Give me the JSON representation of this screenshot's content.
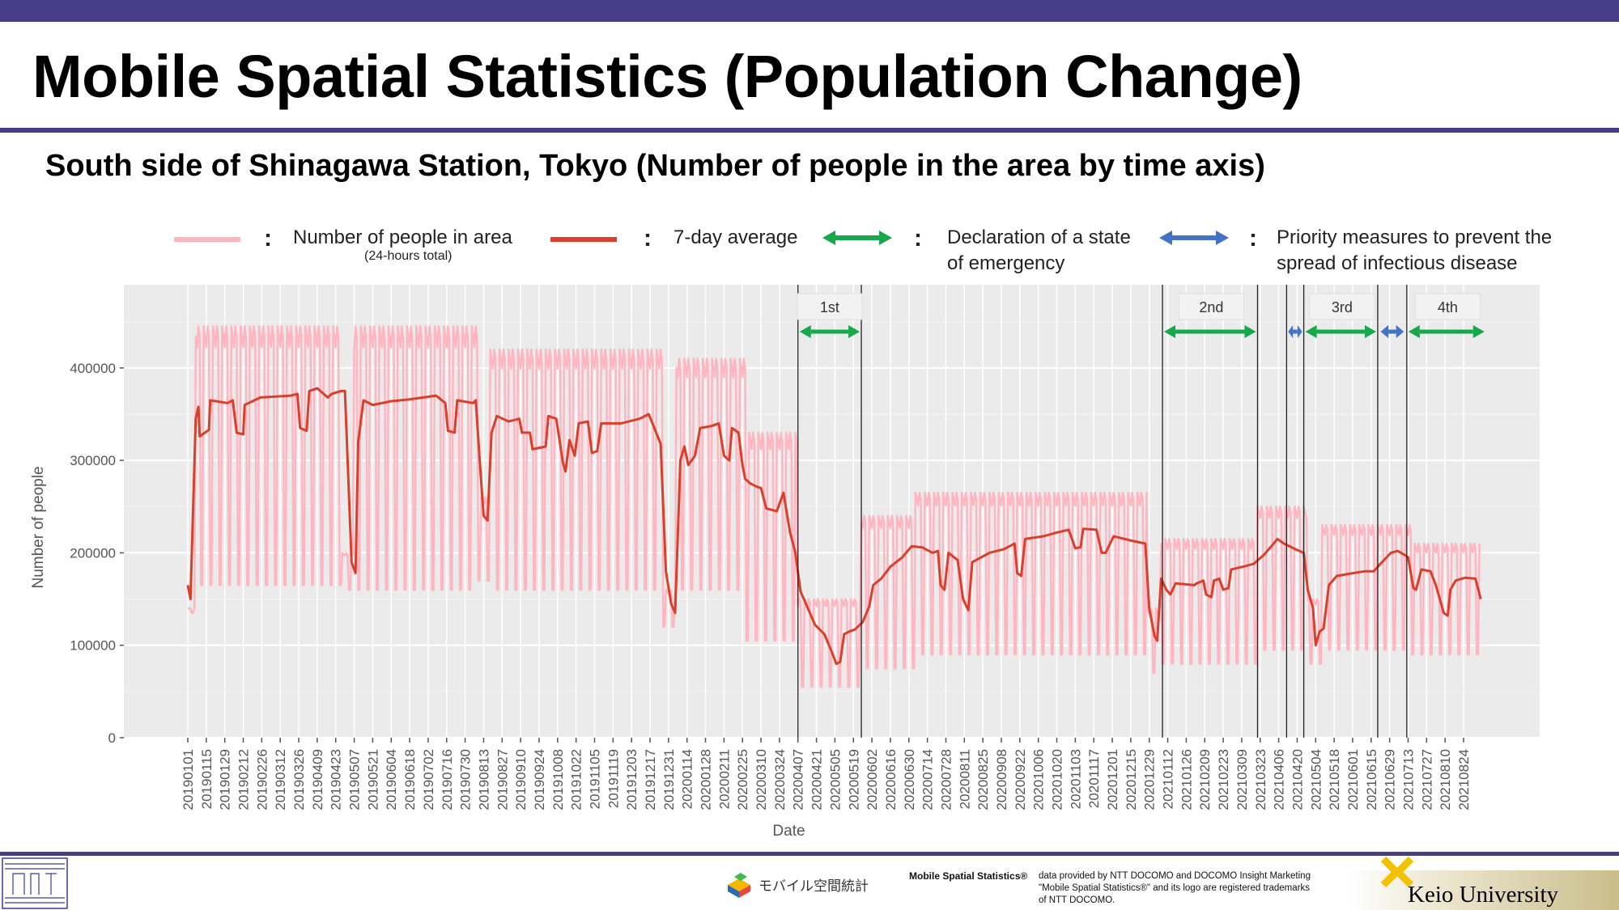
{
  "header": {
    "title": "Mobile Spatial Statistics (Population Change)",
    "subtitle": "South side of Shinagawa Station, Tokyo (Number of people in the area by time axis)"
  },
  "legend": {
    "people": "Number of people in area",
    "people_note": "(24-hours total)",
    "average": "7-day average",
    "emergency_line1": "Declaration of a state",
    "emergency_line2": "of emergency",
    "priority_line1": "Priority measures to prevent the",
    "priority_line2": "spread of infectious disease",
    "colon": ":"
  },
  "colors": {
    "daily": "#ffb6c1",
    "average": "#d9402c",
    "emergency": "#16a84a",
    "priority": "#4472c4",
    "panel": "#ebebeb",
    "brand": "#463d86"
  },
  "footer": {
    "mobile_brand": "モバイル空間統計",
    "credit_bold": "Mobile Spatial Statistics®",
    "credit_line1": "data provided by NTT DOCOMO and DOCOMO Insight Marketing",
    "credit_line2": "\"Mobile Spatial Statistics®\" and its logo are registered trademarks",
    "credit_line3": "of NTT DOCOMO.",
    "university": "Keio University"
  },
  "chart_data": {
    "type": "line",
    "xlabel": "Date",
    "ylabel": "Number of people",
    "ylim": [
      0,
      490000
    ],
    "yticks": [
      0,
      100000,
      200000,
      300000,
      400000
    ],
    "xlim": [
      "2019-01-01",
      "2021-09-10"
    ],
    "xticks": [
      "20190101",
      "20190115",
      "20190129",
      "20190212",
      "20190226",
      "20190312",
      "20190326",
      "20190409",
      "20190423",
      "20190507",
      "20190521",
      "20190604",
      "20190618",
      "20190702",
      "20190716",
      "20190730",
      "20190813",
      "20190827",
      "20190910",
      "20190924",
      "20191008",
      "20191022",
      "20191105",
      "20191119",
      "20191203",
      "20191217",
      "20191231",
      "20200114",
      "20200128",
      "20200211",
      "20200225",
      "20200310",
      "20200324",
      "20200407",
      "20200421",
      "20200505",
      "20200519",
      "20200602",
      "20200616",
      "20200630",
      "20200714",
      "20200728",
      "20200811",
      "20200825",
      "20200908",
      "20200922",
      "20201006",
      "20201020",
      "20201103",
      "20201117",
      "20201201",
      "20201215",
      "20201229",
      "20210112",
      "20210126",
      "20210209",
      "20210223",
      "20210309",
      "20210323",
      "20210406",
      "20210420",
      "20210504",
      "20210518",
      "20210601",
      "20210615",
      "20210629",
      "20210713",
      "20210727",
      "20210810",
      "20210824"
    ],
    "grid": true,
    "legend_position": "top",
    "series": [
      {
        "name": "7-day average",
        "points": [
          [
            "2019-01-01",
            165000
          ],
          [
            "2019-01-03",
            150000
          ],
          [
            "2019-01-07",
            345000
          ],
          [
            "2019-01-09",
            358000
          ],
          [
            "2019-01-10",
            326000
          ],
          [
            "2019-01-17",
            333000
          ],
          [
            "2019-01-18",
            365000
          ],
          [
            "2019-01-31",
            362000
          ],
          [
            "2019-02-04",
            365000
          ],
          [
            "2019-02-07",
            330000
          ],
          [
            "2019-02-12",
            328000
          ],
          [
            "2019-02-13",
            360000
          ],
          [
            "2019-02-25",
            368000
          ],
          [
            "2019-03-20",
            370000
          ],
          [
            "2019-03-25",
            372000
          ],
          [
            "2019-03-27",
            335000
          ],
          [
            "2019-04-01",
            332000
          ],
          [
            "2019-04-03",
            375000
          ],
          [
            "2019-04-09",
            378000
          ],
          [
            "2019-04-17",
            368000
          ],
          [
            "2019-04-20",
            372000
          ],
          [
            "2019-04-27",
            375000
          ],
          [
            "2019-04-30",
            375000
          ],
          [
            "2019-05-05",
            190000
          ],
          [
            "2019-05-08",
            178000
          ],
          [
            "2019-05-10",
            320000
          ],
          [
            "2019-05-14",
            365000
          ],
          [
            "2019-05-21",
            360000
          ],
          [
            "2019-06-04",
            364000
          ],
          [
            "2019-06-18",
            366000
          ],
          [
            "2019-07-08",
            370000
          ],
          [
            "2019-07-15",
            362000
          ],
          [
            "2019-07-17",
            332000
          ],
          [
            "2019-07-22",
            330000
          ],
          [
            "2019-07-24",
            365000
          ],
          [
            "2019-08-05",
            362000
          ],
          [
            "2019-08-07",
            365000
          ],
          [
            "2019-08-10",
            300000
          ],
          [
            "2019-08-13",
            240000
          ],
          [
            "2019-08-16",
            235000
          ],
          [
            "2019-08-19",
            330000
          ],
          [
            "2019-08-23",
            348000
          ],
          [
            "2019-09-01",
            342000
          ],
          [
            "2019-09-09",
            345000
          ],
          [
            "2019-09-11",
            330000
          ],
          [
            "2019-09-17",
            330000
          ],
          [
            "2019-09-19",
            312000
          ],
          [
            "2019-09-29",
            315000
          ],
          [
            "2019-10-01",
            348000
          ],
          [
            "2019-10-07",
            345000
          ],
          [
            "2019-10-12",
            298000
          ],
          [
            "2019-10-14",
            288000
          ],
          [
            "2019-10-17",
            322000
          ],
          [
            "2019-10-21",
            305000
          ],
          [
            "2019-10-24",
            340000
          ],
          [
            "2019-10-31",
            342000
          ],
          [
            "2019-11-03",
            308000
          ],
          [
            "2019-11-07",
            310000
          ],
          [
            "2019-11-10",
            340000
          ],
          [
            "2019-11-25",
            340000
          ],
          [
            "2019-12-09",
            345000
          ],
          [
            "2019-12-16",
            350000
          ],
          [
            "2019-12-25",
            318000
          ],
          [
            "2019-12-29",
            180000
          ],
          [
            "2020-01-02",
            145000
          ],
          [
            "2020-01-05",
            135000
          ],
          [
            "2020-01-09",
            300000
          ],
          [
            "2020-01-12",
            315000
          ],
          [
            "2020-01-15",
            295000
          ],
          [
            "2020-01-20",
            305000
          ],
          [
            "2020-01-24",
            335000
          ],
          [
            "2020-02-01",
            337000
          ],
          [
            "2020-02-07",
            340000
          ],
          [
            "2020-02-11",
            305000
          ],
          [
            "2020-02-15",
            300000
          ],
          [
            "2020-02-17",
            335000
          ],
          [
            "2020-02-22",
            330000
          ],
          [
            "2020-02-25",
            295000
          ],
          [
            "2020-02-27",
            280000
          ],
          [
            "2020-03-02",
            275000
          ],
          [
            "2020-03-06",
            272000
          ],
          [
            "2020-03-10",
            270000
          ],
          [
            "2020-03-14",
            248000
          ],
          [
            "2020-03-22",
            245000
          ],
          [
            "2020-03-27",
            265000
          ],
          [
            "2020-04-01",
            222000
          ],
          [
            "2020-04-05",
            200000
          ],
          [
            "2020-04-09",
            158000
          ],
          [
            "2020-04-13",
            145000
          ],
          [
            "2020-04-20",
            122000
          ],
          [
            "2020-04-27",
            112000
          ],
          [
            "2020-05-02",
            95000
          ],
          [
            "2020-05-06",
            80000
          ],
          [
            "2020-05-09",
            82000
          ],
          [
            "2020-05-12",
            112000
          ],
          [
            "2020-05-16",
            115000
          ],
          [
            "2020-05-20",
            117000
          ],
          [
            "2020-05-26",
            125000
          ],
          [
            "2020-05-31",
            142000
          ],
          [
            "2020-06-03",
            165000
          ],
          [
            "2020-06-09",
            172000
          ],
          [
            "2020-06-16",
            185000
          ],
          [
            "2020-06-25",
            195000
          ],
          [
            "2020-07-02",
            207000
          ],
          [
            "2020-07-10",
            206000
          ],
          [
            "2020-07-18",
            200000
          ],
          [
            "2020-07-22",
            202000
          ],
          [
            "2020-07-24",
            165000
          ],
          [
            "2020-07-27",
            160000
          ],
          [
            "2020-07-30",
            200000
          ],
          [
            "2020-08-06",
            192000
          ],
          [
            "2020-08-10",
            150000
          ],
          [
            "2020-08-14",
            138000
          ],
          [
            "2020-08-17",
            190000
          ],
          [
            "2020-08-30",
            200000
          ],
          [
            "2020-09-10",
            204000
          ],
          [
            "2020-09-18",
            210000
          ],
          [
            "2020-09-20",
            178000
          ],
          [
            "2020-09-23",
            175000
          ],
          [
            "2020-09-26",
            215000
          ],
          [
            "2020-10-10",
            218000
          ],
          [
            "2020-10-20",
            222000
          ],
          [
            "2020-10-29",
            225000
          ],
          [
            "2020-11-03",
            205000
          ],
          [
            "2020-11-07",
            206000
          ],
          [
            "2020-11-09",
            226000
          ],
          [
            "2020-11-19",
            225000
          ],
          [
            "2020-11-23",
            200000
          ],
          [
            "2020-11-26",
            200000
          ],
          [
            "2020-12-02",
            218000
          ],
          [
            "2020-12-16",
            213000
          ],
          [
            "2020-12-26",
            210000
          ],
          [
            "2020-12-29",
            140000
          ],
          [
            "2021-01-02",
            110000
          ],
          [
            "2021-01-04",
            105000
          ],
          [
            "2021-01-07",
            172000
          ],
          [
            "2021-01-11",
            160000
          ],
          [
            "2021-01-14",
            155000
          ],
          [
            "2021-01-18",
            167000
          ],
          [
            "2021-02-01",
            165000
          ],
          [
            "2021-02-03",
            167000
          ],
          [
            "2021-02-08",
            170000
          ],
          [
            "2021-02-10",
            155000
          ],
          [
            "2021-02-14",
            152000
          ],
          [
            "2021-02-16",
            170000
          ],
          [
            "2021-02-20",
            172000
          ],
          [
            "2021-02-23",
            160000
          ],
          [
            "2021-02-27",
            162000
          ],
          [
            "2021-03-01",
            182000
          ],
          [
            "2021-03-10",
            185000
          ],
          [
            "2021-03-18",
            188000
          ],
          [
            "2021-03-26",
            198000
          ],
          [
            "2021-04-01",
            208000
          ],
          [
            "2021-04-05",
            215000
          ],
          [
            "2021-04-10",
            210000
          ],
          [
            "2021-04-20",
            203000
          ],
          [
            "2021-04-25",
            200000
          ],
          [
            "2021-04-28",
            160000
          ],
          [
            "2021-05-02",
            140000
          ],
          [
            "2021-05-04",
            100000
          ],
          [
            "2021-05-07",
            115000
          ],
          [
            "2021-05-10",
            118000
          ],
          [
            "2021-05-14",
            165000
          ],
          [
            "2021-05-20",
            175000
          ],
          [
            "2021-06-01",
            178000
          ],
          [
            "2021-06-10",
            180000
          ],
          [
            "2021-06-17",
            180000
          ],
          [
            "2021-06-22",
            188000
          ],
          [
            "2021-06-30",
            200000
          ],
          [
            "2021-07-05",
            202000
          ],
          [
            "2021-07-10",
            198000
          ],
          [
            "2021-07-13",
            195000
          ],
          [
            "2021-07-17",
            162000
          ],
          [
            "2021-07-19",
            160000
          ],
          [
            "2021-07-23",
            182000
          ],
          [
            "2021-07-30",
            180000
          ],
          [
            "2021-08-03",
            165000
          ],
          [
            "2021-08-09",
            135000
          ],
          [
            "2021-08-12",
            132000
          ],
          [
            "2021-08-14",
            160000
          ],
          [
            "2021-08-18",
            170000
          ],
          [
            "2021-08-25",
            173000
          ],
          [
            "2021-09-02",
            172000
          ],
          [
            "2021-09-06",
            150000
          ]
        ]
      },
      {
        "name": "Number of people in area",
        "segments": [
          {
            "start": "2019-01-01",
            "end": "2019-01-07",
            "high": 140000,
            "low": 135000
          },
          {
            "start": "2019-01-07",
            "end": "2019-04-28",
            "high": 445000,
            "low": 165000
          },
          {
            "start": "2019-04-28",
            "end": "2019-05-07",
            "high": 200000,
            "low": 160000
          },
          {
            "start": "2019-05-07",
            "end": "2019-08-09",
            "high": 445000,
            "low": 160000
          },
          {
            "start": "2019-08-09",
            "end": "2019-08-18",
            "high": 260000,
            "low": 170000
          },
          {
            "start": "2019-08-18",
            "end": "2019-12-27",
            "high": 420000,
            "low": 160000
          },
          {
            "start": "2019-12-27",
            "end": "2020-01-06",
            "high": 160000,
            "low": 120000
          },
          {
            "start": "2020-01-06",
            "end": "2020-02-28",
            "high": 410000,
            "low": 160000
          },
          {
            "start": "2020-02-28",
            "end": "2020-04-07",
            "high": 330000,
            "low": 105000
          },
          {
            "start": "2020-04-07",
            "end": "2020-05-25",
            "high": 150000,
            "low": 55000
          },
          {
            "start": "2020-05-25",
            "end": "2020-07-05",
            "high": 240000,
            "low": 75000
          },
          {
            "start": "2020-07-05",
            "end": "2020-12-28",
            "high": 265000,
            "low": 90000
          },
          {
            "start": "2020-12-28",
            "end": "2021-01-07",
            "high": 140000,
            "low": 70000
          },
          {
            "start": "2021-01-07",
            "end": "2021-03-21",
            "high": 215000,
            "low": 80000
          },
          {
            "start": "2021-03-21",
            "end": "2021-04-28",
            "high": 250000,
            "low": 95000
          },
          {
            "start": "2021-04-28",
            "end": "2021-05-09",
            "high": 150000,
            "low": 80000
          },
          {
            "start": "2021-05-09",
            "end": "2021-07-16",
            "high": 230000,
            "low": 95000
          },
          {
            "start": "2021-07-16",
            "end": "2021-09-06",
            "high": 210000,
            "low": 90000
          }
        ]
      }
    ],
    "periods": [
      {
        "label": "1st",
        "type": "emergency",
        "start": "2020-04-07",
        "end": "2020-05-25"
      },
      {
        "label": "2nd",
        "type": "emergency",
        "start": "2021-01-08",
        "end": "2021-03-21"
      },
      {
        "label": "",
        "type": "priority",
        "start": "2021-04-12",
        "end": "2021-04-25"
      },
      {
        "label": "3rd",
        "type": "emergency",
        "start": "2021-04-25",
        "end": "2021-06-20"
      },
      {
        "label": "",
        "type": "priority",
        "start": "2021-06-21",
        "end": "2021-07-11"
      },
      {
        "label": "4th",
        "type": "emergency",
        "start": "2021-07-12",
        "end": "2021-09-10"
      }
    ],
    "vlines": [
      "2020-04-07",
      "2020-05-25",
      "2021-01-08",
      "2021-03-21",
      "2021-04-12",
      "2021-04-25",
      "2021-06-20",
      "2021-07-12"
    ],
    "annotation_boxes": [
      {
        "label": "1st",
        "center": "2020-05-01"
      },
      {
        "label": "2nd",
        "center": "2021-02-14"
      },
      {
        "label": "3rd",
        "center": "2021-05-24"
      },
      {
        "label": "4th",
        "center": "2021-08-12"
      }
    ]
  }
}
